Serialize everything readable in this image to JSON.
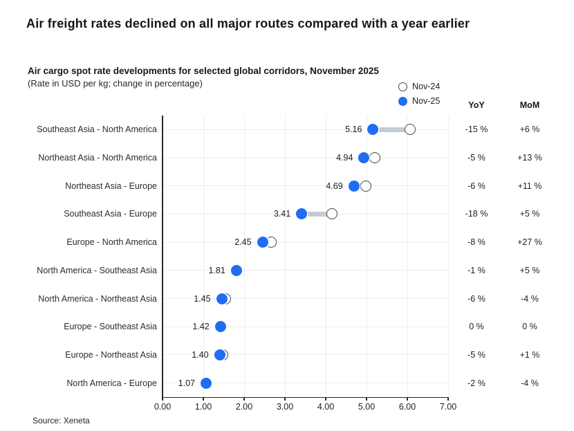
{
  "title": "Air freight rates declined on all major routes compared with a year earlier",
  "subtitle": "Air cargo spot rate developments for selected global corridors, November 2025",
  "subtitle_note": "(Rate in USD per kg; change in percentage)",
  "legend": [
    {
      "label": "Nov-24",
      "type": "open"
    },
    {
      "label": "Nov-25",
      "type": "filled"
    }
  ],
  "columns": {
    "yoy": "YoY",
    "mom": "MoM"
  },
  "source": "Source: Xeneta",
  "colors": {
    "nov25_fill": "#1e6df2",
    "nov24_stroke": "#45454c",
    "connector": "#c5cbd3",
    "gridline": "#ededf1",
    "axis": "#26262c"
  },
  "chart_data": {
    "type": "dumbbell",
    "title": "Air cargo spot rate developments for selected global corridors, November 2025",
    "xlabel": "Rate in USD per kg",
    "xlim": [
      0,
      7
    ],
    "x_ticks": [
      "0.00",
      "1.00",
      "2.00",
      "3.00",
      "4.00",
      "5.00",
      "6.00",
      "7.00"
    ],
    "legend_position": "top-right",
    "grid": true,
    "series_names": [
      "Nov-24",
      "Nov-25"
    ],
    "rows": [
      {
        "route": "Southeast Asia - North America",
        "nov25": 5.16,
        "nov24": 6.07,
        "value_label": "5.16",
        "yoy": "-15 %",
        "mom": "+6 %"
      },
      {
        "route": "Northeast Asia - North America",
        "nov25": 4.94,
        "nov24": 5.2,
        "value_label": "4.94",
        "yoy": "-5 %",
        "mom": "+13 %"
      },
      {
        "route": "Northeast Asia - Europe",
        "nov25": 4.69,
        "nov24": 4.99,
        "value_label": "4.69",
        "yoy": "-6 %",
        "mom": "+11 %"
      },
      {
        "route": "Southeast Asia - Europe",
        "nov25": 3.41,
        "nov24": 4.16,
        "value_label": "3.41",
        "yoy": "-18 %",
        "mom": "+5 %"
      },
      {
        "route": "Europe - North America",
        "nov25": 2.45,
        "nov24": 2.66,
        "value_label": "2.45",
        "yoy": "-8 %",
        "mom": "+27 %"
      },
      {
        "route": "North America - Southeast Asia",
        "nov25": 1.81,
        "nov24": 1.83,
        "value_label": "1.81",
        "yoy": "-1 %",
        "mom": "+5 %"
      },
      {
        "route": "North America - Northeast Asia",
        "nov25": 1.45,
        "nov24": 1.54,
        "value_label": "1.45",
        "yoy": "-6 %",
        "mom": "-4 %"
      },
      {
        "route": "Europe - Southeast Asia",
        "nov25": 1.42,
        "nov24": 1.42,
        "value_label": "1.42",
        "yoy": "0 %",
        "mom": "0 %"
      },
      {
        "route": "Europe - Northeast Asia",
        "nov25": 1.4,
        "nov24": 1.47,
        "value_label": "1.40",
        "yoy": "-5 %",
        "mom": "+1 %"
      },
      {
        "route": "North America - Europe",
        "nov25": 1.07,
        "nov24": 1.09,
        "value_label": "1.07",
        "yoy": "-2 %",
        "mom": "-4 %"
      }
    ]
  }
}
